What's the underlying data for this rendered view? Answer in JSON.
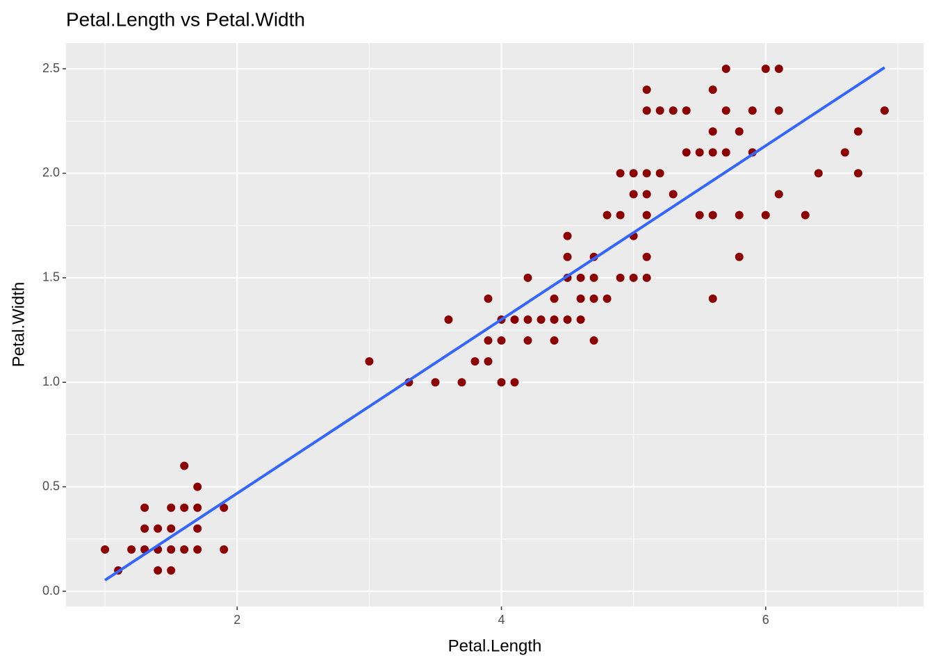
{
  "chart_data": {
    "type": "scatter",
    "title": "Petal.Length vs Petal.Width",
    "x_label": "Petal.Length",
    "y_label": "Petal.Width",
    "xlim": [
      0.705,
      7.195
    ],
    "ylim": [
      -0.073,
      2.623
    ],
    "xticks": [
      2,
      4,
      6
    ],
    "yticks": [
      {
        "value": 0,
        "label": "0.0"
      },
      {
        "value": 0.5,
        "label": "0.5"
      },
      {
        "value": 1,
        "label": "1.0"
      },
      {
        "value": 1.5,
        "label": "1.5"
      },
      {
        "value": 2,
        "label": "2.0"
      },
      {
        "value": 2.5,
        "label": "2.5"
      }
    ],
    "x_minor_grid": [
      1,
      3,
      5,
      7
    ],
    "y_minor_grid": [
      0.25,
      0.75,
      1.25,
      1.75,
      2.25
    ],
    "grid": true,
    "panel_color": "#ebebeb",
    "grid_color": "#ffffff",
    "series": [
      {
        "color": "#8b0000",
        "x": [
          1.0,
          1.1,
          1.2,
          1.3,
          1.3,
          1.3,
          1.4,
          1.4,
          1.4,
          1.5,
          1.5,
          1.5,
          1.5,
          1.6,
          1.6,
          1.6,
          1.7,
          1.7,
          1.7,
          1.7,
          1.9,
          1.9,
          3.0,
          3.3,
          3.5,
          3.6,
          3.7,
          3.8,
          3.9,
          3.9,
          3.9,
          4.0,
          4.0,
          4.0,
          4.1,
          4.1,
          4.2,
          4.2,
          4.2,
          4.3,
          4.4,
          4.4,
          4.4,
          4.5,
          4.5,
          4.5,
          4.5,
          4.6,
          4.6,
          4.6,
          4.7,
          4.7,
          4.7,
          4.7,
          4.8,
          4.8,
          4.9,
          4.9,
          4.9,
          5.0,
          5.0,
          5.0,
          5.0,
          5.1,
          5.1,
          5.1,
          5.1,
          5.1,
          5.1,
          5.1,
          5.2,
          5.2,
          5.3,
          5.3,
          5.4,
          5.4,
          5.5,
          5.5,
          5.6,
          5.6,
          5.6,
          5.6,
          5.6,
          5.7,
          5.7,
          5.7,
          5.8,
          5.8,
          5.8,
          5.9,
          5.9,
          6.0,
          6.0,
          6.1,
          6.1,
          6.1,
          6.3,
          6.4,
          6.6,
          6.7,
          6.7,
          6.9
        ],
        "values": [
          0.2,
          0.1,
          0.2,
          0.2,
          0.3,
          0.4,
          0.1,
          0.2,
          0.3,
          0.1,
          0.2,
          0.3,
          0.4,
          0.2,
          0.4,
          0.6,
          0.2,
          0.3,
          0.4,
          0.5,
          0.2,
          0.4,
          1.1,
          1.0,
          1.0,
          1.3,
          1.0,
          1.1,
          1.1,
          1.2,
          1.4,
          1.0,
          1.2,
          1.3,
          1.0,
          1.3,
          1.2,
          1.3,
          1.5,
          1.3,
          1.2,
          1.3,
          1.4,
          1.3,
          1.5,
          1.6,
          1.7,
          1.3,
          1.4,
          1.5,
          1.2,
          1.4,
          1.5,
          1.6,
          1.4,
          1.8,
          1.5,
          1.8,
          2.0,
          1.5,
          1.7,
          1.9,
          2.0,
          1.5,
          1.6,
          1.8,
          1.9,
          2.0,
          2.3,
          2.4,
          2.0,
          2.3,
          1.9,
          2.3,
          2.1,
          2.3,
          1.8,
          2.1,
          1.4,
          1.8,
          2.1,
          2.2,
          2.4,
          2.1,
          2.3,
          2.5,
          1.6,
          1.8,
          2.2,
          2.1,
          2.3,
          1.8,
          2.5,
          1.9,
          2.3,
          2.5,
          1.8,
          2.0,
          2.1,
          2.0,
          2.2,
          2.3
        ]
      }
    ],
    "trend_line": {
      "color": "#3366ff",
      "x": [
        1.0,
        6.9
      ],
      "values": [
        0.053,
        2.506
      ]
    }
  }
}
